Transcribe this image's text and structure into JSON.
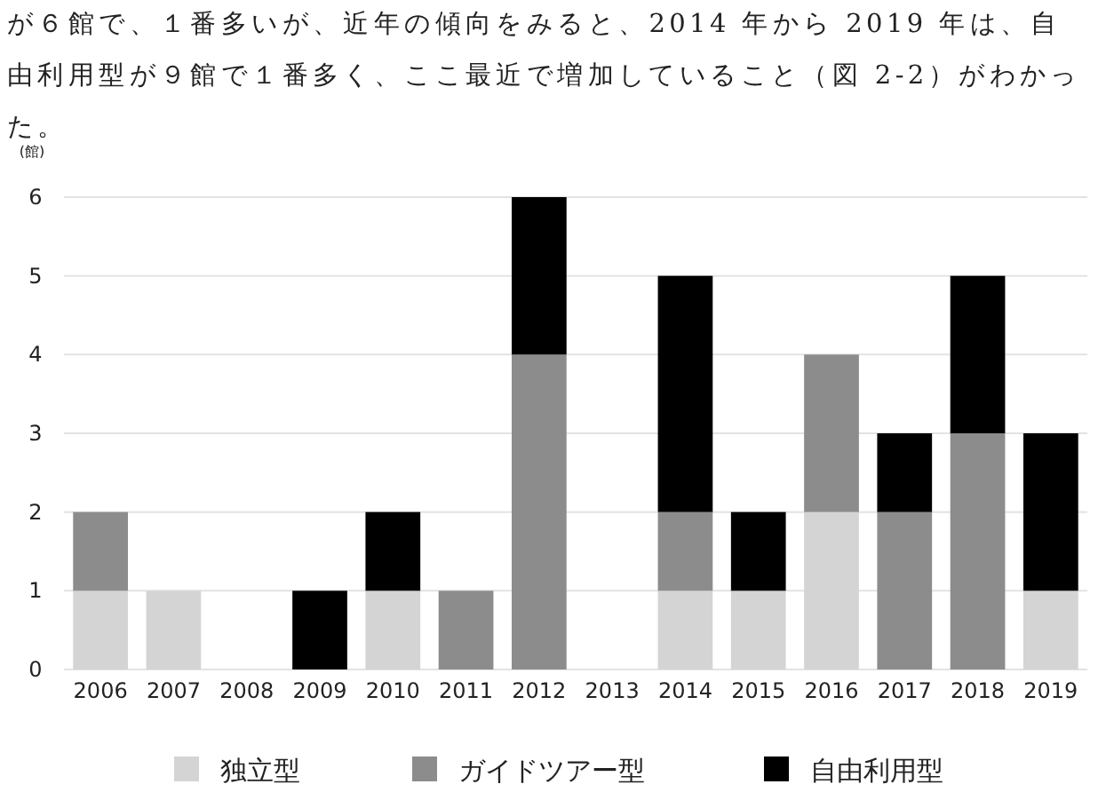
{
  "chart_data": {
    "type": "bar",
    "stacked": true,
    "ylabel": "(館)",
    "annotations": [
      "が６館で、１番多いが、近年の傾向をみると、2014 年から 2019 年は、自由利用型が９館で１番多く、ここ最近で増加していること（図 2-2）がわかった。"
    ],
    "categories": [
      "2006",
      "2007",
      "2008",
      "2009",
      "2010",
      "2011",
      "2012",
      "2013",
      "2014",
      "2015",
      "2016",
      "2017",
      "2018",
      "2019"
    ],
    "series": [
      {
        "name": "独立型",
        "color": "#d4d4d4",
        "values": [
          1,
          1,
          0,
          0,
          1,
          0,
          0,
          0,
          1,
          1,
          2,
          0,
          0,
          1
        ]
      },
      {
        "name": "ガイドツアー型",
        "color": "#8c8c8c",
        "values": [
          1,
          0,
          0,
          0,
          0,
          1,
          4,
          0,
          1,
          0,
          2,
          2,
          3,
          0
        ]
      },
      {
        "name": "自由利用型",
        "color": "#000000",
        "values": [
          0,
          0,
          0,
          1,
          1,
          0,
          2,
          0,
          3,
          1,
          0,
          1,
          2,
          2
        ]
      }
    ],
    "ylim": [
      0,
      6
    ],
    "yticks": [
      0,
      1,
      2,
      3,
      4,
      5,
      6
    ],
    "grid": "y",
    "legend": "bottom"
  }
}
